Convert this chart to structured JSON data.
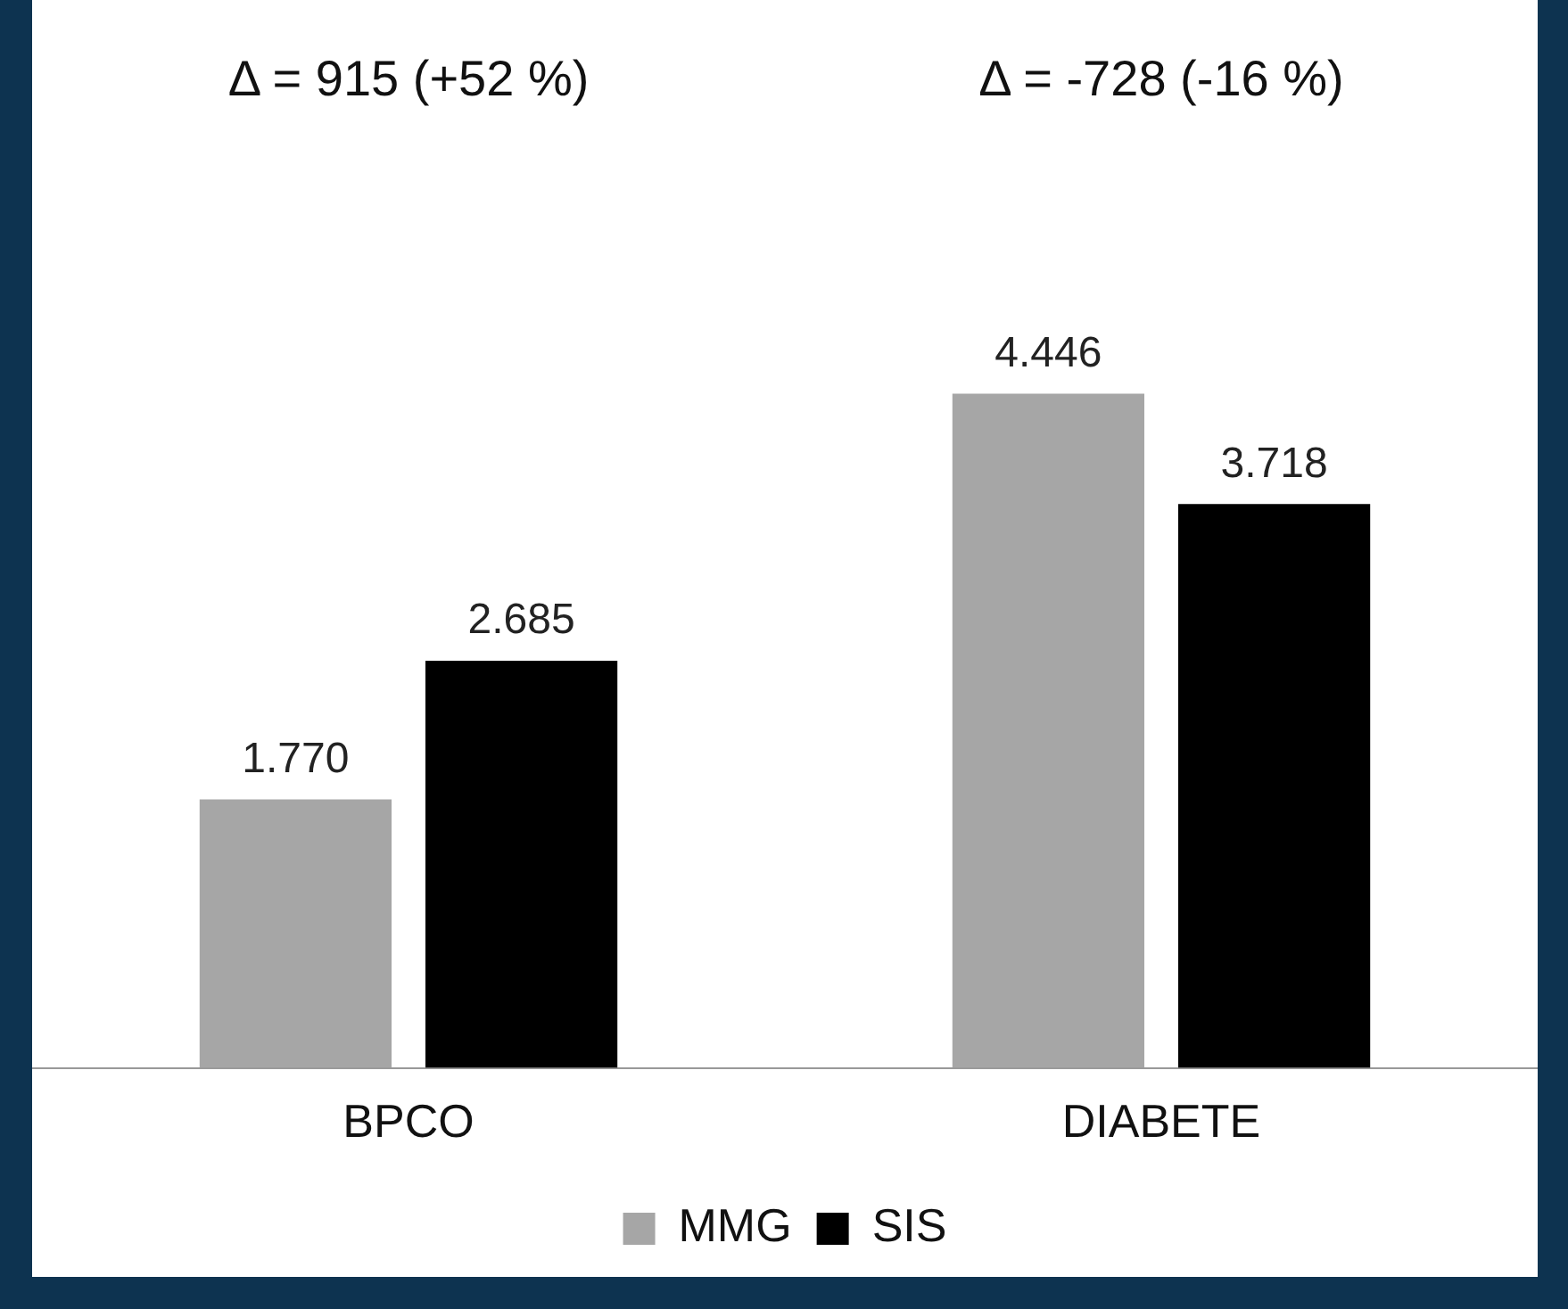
{
  "chart_data": {
    "type": "bar",
    "categories": [
      "BPCO",
      "DIABETE"
    ],
    "series": [
      {
        "name": "MMG",
        "color": "#a6a6a6",
        "values": [
          1770,
          4446
        ],
        "value_labels": [
          "1.770",
          "4.446"
        ]
      },
      {
        "name": "SIS",
        "color": "#000000",
        "values": [
          2685,
          3718
        ],
        "value_labels": [
          "2.685",
          "3.718"
        ]
      }
    ],
    "annotations": [
      "Δ = 915 (+52 %)",
      "Δ = -728 (-16 %)"
    ],
    "legend": "bottom",
    "grid": false
  }
}
